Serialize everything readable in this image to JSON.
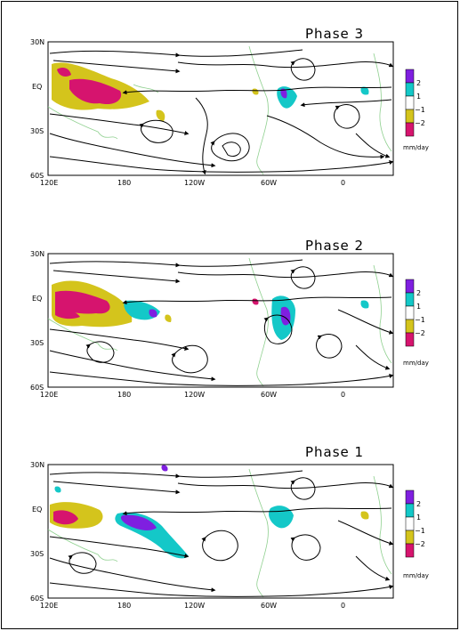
{
  "panels": [
    {
      "title": "Phase 3"
    },
    {
      "title": "Phase 2"
    },
    {
      "title": "Phase 1"
    }
  ],
  "lat_labels": [
    "30N",
    "EQ",
    "30S",
    "60S"
  ],
  "lon_labels": [
    "120E",
    "180",
    "120W",
    "60W",
    "0"
  ],
  "legend": {
    "labels": [
      "2",
      "1",
      "−1",
      "−2"
    ],
    "units": "mm/day",
    "colors": [
      "#7f1fe0",
      "#14c8c8",
      "#ffffff",
      "#d4c41c",
      "#d6146e"
    ]
  },
  "colors": {
    "positive_strong": "#7f1fe0",
    "positive": "#14c8c8",
    "negative": "#d4c41c",
    "negative_strong": "#d6146e",
    "coast": "#8fd08f"
  }
}
